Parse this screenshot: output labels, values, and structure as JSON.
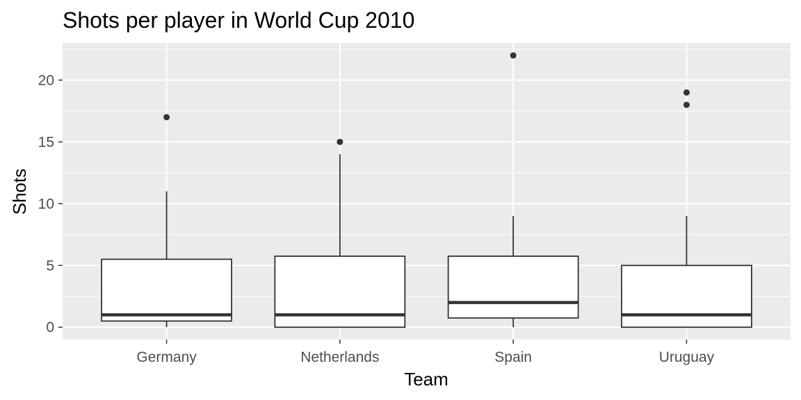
{
  "chart_data": {
    "type": "boxplot",
    "title": "Shots per player in World Cup 2010",
    "xlabel": "Team",
    "ylabel": "Shots",
    "categories": [
      "Germany",
      "Netherlands",
      "Spain",
      "Uruguay"
    ],
    "ylim": [
      -1,
      23
    ],
    "yticks": [
      0,
      5,
      10,
      15,
      20
    ],
    "ytick_labels": [
      "0",
      "5",
      "10",
      "15",
      "20"
    ],
    "grid": true,
    "series": [
      {
        "category": "Germany",
        "lower_whisker": 0,
        "q1": 0.5,
        "median": 1,
        "q3": 5.5,
        "upper_whisker": 11,
        "outliers": [
          17
        ]
      },
      {
        "category": "Netherlands",
        "lower_whisker": 0,
        "q1": 0,
        "median": 1,
        "q3": 5.75,
        "upper_whisker": 14,
        "outliers": [
          15
        ]
      },
      {
        "category": "Spain",
        "lower_whisker": 0,
        "q1": 0.75,
        "median": 2,
        "q3": 5.75,
        "upper_whisker": 9,
        "outliers": [
          22
        ]
      },
      {
        "category": "Uruguay",
        "lower_whisker": 0,
        "q1": 0,
        "median": 1,
        "q3": 5,
        "upper_whisker": 9,
        "outliers": [
          18,
          19
        ]
      }
    ],
    "colors": {
      "panel_background": "#ebebeb",
      "grid_line": "#ffffff",
      "box_fill": "#ffffff",
      "box_stroke": "#333333",
      "outlier": "#333333",
      "tick_label": "#4d4d4d"
    }
  }
}
